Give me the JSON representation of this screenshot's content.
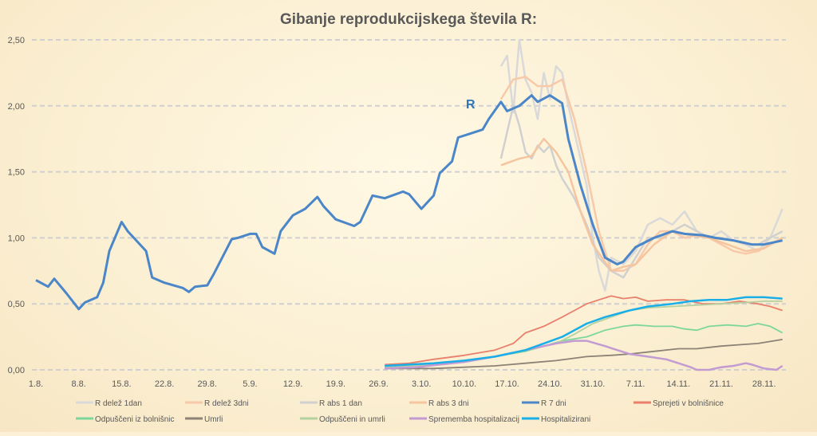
{
  "chart_data": {
    "type": "line",
    "title": "Gibanje reprodukcijskega števila R:",
    "annotation": "R",
    "xlabel": "",
    "ylabel": "",
    "ylim": [
      0,
      2.5
    ],
    "yticks": [
      "0,00",
      "0,50",
      "1,00",
      "1,50",
      "2,00",
      "2,50"
    ],
    "ytick_values": [
      0,
      0.5,
      1,
      1.5,
      2,
      2.5
    ],
    "xticks": [
      "1.8.",
      "8.8.",
      "15.8.",
      "22.8.",
      "29.8.",
      "5.9.",
      "12.9.",
      "19.9.",
      "26.9.",
      "3.10.",
      "10.10.",
      "17.10.",
      "24.10.",
      "31.10.",
      "7.11.",
      "14.11.",
      "21.11.",
      "28.11."
    ],
    "xtick_days": [
      0,
      7,
      14,
      21,
      28,
      35,
      42,
      49,
      56,
      63,
      70,
      77,
      84,
      91,
      98,
      105,
      112,
      119
    ],
    "xlim": [
      0,
      123
    ],
    "grid": "horizontal-dashed",
    "legend_position": "bottom",
    "series": [
      {
        "name": "R delež 1dan",
        "color": "#d9d9d9",
        "width": 2.5,
        "x": [
          76,
          77,
          78,
          79,
          80,
          81,
          82,
          83,
          84,
          85,
          86,
          87,
          88,
          89,
          90,
          91,
          92,
          93,
          94,
          96,
          98,
          100,
          102,
          104,
          106,
          108,
          110,
          112,
          114,
          116,
          118,
          120,
          122
        ],
        "values": [
          2.3,
          2.38,
          1.95,
          2.5,
          2.2,
          2.1,
          1.9,
          2.25,
          2.05,
          2.3,
          2.25,
          2.0,
          1.8,
          1.6,
          1.4,
          1.0,
          0.75,
          0.6,
          0.85,
          0.8,
          0.9,
          1.1,
          1.15,
          1.1,
          1.2,
          1.05,
          1.0,
          1.05,
          0.98,
          0.95,
          0.9,
          1.0,
          1.22
        ]
      },
      {
        "name": "R delež 3dni",
        "color": "#f8c9a8",
        "width": 2.5,
        "x": [
          76,
          78,
          80,
          82,
          84,
          86,
          88,
          90,
          92,
          94,
          96,
          98,
          100,
          102,
          104,
          106,
          108,
          110,
          112,
          114,
          116,
          118,
          120,
          122
        ],
        "values": [
          2.05,
          2.2,
          2.22,
          2.15,
          2.15,
          2.2,
          1.9,
          1.5,
          1.05,
          0.75,
          0.75,
          0.8,
          0.95,
          1.05,
          1.05,
          1.0,
          1.02,
          1.0,
          0.95,
          0.9,
          0.88,
          0.9,
          0.95,
          1.0
        ]
      },
      {
        "name": "R abs 1 dan",
        "color": "#d0d0d0",
        "width": 2.5,
        "x": [
          76,
          77,
          78,
          79,
          80,
          81,
          82,
          83,
          84,
          85,
          86,
          88,
          90,
          92,
          93,
          94,
          96,
          98,
          100,
          102,
          104,
          106,
          108,
          110,
          112,
          114,
          116,
          118,
          120,
          122
        ],
        "values": [
          1.6,
          1.8,
          2.0,
          1.85,
          1.65,
          1.6,
          1.7,
          1.65,
          1.7,
          1.55,
          1.45,
          1.3,
          1.1,
          0.85,
          0.8,
          0.75,
          0.7,
          0.85,
          1.0,
          1.0,
          1.05,
          1.1,
          1.05,
          1.0,
          1.0,
          0.98,
          0.95,
          0.95,
          1.0,
          1.05
        ]
      },
      {
        "name": "R abs 3 dni",
        "color": "#f5c5a0",
        "width": 2.5,
        "x": [
          76,
          79,
          81,
          83,
          85,
          87,
          89,
          91,
          94,
          96,
          98,
          101,
          104,
          107,
          110,
          113,
          116,
          119,
          122
        ],
        "values": [
          1.55,
          1.6,
          1.62,
          1.75,
          1.65,
          1.5,
          1.2,
          0.95,
          0.75,
          0.78,
          0.8,
          0.95,
          1.05,
          1.02,
          1.0,
          0.95,
          0.9,
          0.92,
          1.0
        ]
      },
      {
        "name": "R 7 dni",
        "color": "#4a86c8",
        "width": 3,
        "x": [
          0,
          2,
          3,
          5,
          7,
          8,
          10,
          11,
          12,
          14,
          15,
          18,
          19,
          21,
          24,
          25,
          26,
          28,
          29,
          32,
          33,
          35,
          36,
          37,
          39,
          40,
          42,
          44,
          46,
          47,
          49,
          52,
          53,
          55,
          57,
          60,
          61,
          63,
          65,
          66,
          68,
          69,
          71,
          73,
          74,
          76,
          77,
          79,
          81,
          82,
          84,
          86,
          87,
          89,
          91,
          93,
          95,
          96,
          98,
          101,
          104,
          106,
          109,
          111,
          114,
          117,
          119,
          122
        ],
        "values": [
          0.68,
          0.63,
          0.69,
          0.58,
          0.46,
          0.51,
          0.55,
          0.66,
          0.9,
          1.12,
          1.05,
          0.9,
          0.7,
          0.66,
          0.62,
          0.59,
          0.63,
          0.64,
          0.72,
          0.99,
          1.0,
          1.03,
          1.03,
          0.93,
          0.88,
          1.05,
          1.17,
          1.22,
          1.31,
          1.24,
          1.14,
          1.09,
          1.12,
          1.32,
          1.3,
          1.35,
          1.33,
          1.22,
          1.32,
          1.49,
          1.58,
          1.76,
          1.79,
          1.82,
          1.9,
          2.03,
          1.96,
          2.0,
          2.08,
          2.03,
          2.08,
          2.02,
          1.75,
          1.4,
          1.1,
          0.85,
          0.8,
          0.82,
          0.93,
          1.0,
          1.05,
          1.03,
          1.02,
          1.0,
          0.98,
          0.95,
          0.95,
          0.98
        ]
      },
      {
        "name": "Sprejeti v bolnišnice",
        "color": "#e8806c",
        "width": 1.8,
        "x": [
          57,
          61,
          65,
          70,
          75,
          78,
          80,
          83,
          86,
          88,
          90,
          92,
          94,
          96,
          98,
          100,
          103,
          106,
          109,
          112,
          115,
          118,
          120,
          122
        ],
        "values": [
          0.04,
          0.05,
          0.08,
          0.11,
          0.15,
          0.2,
          0.28,
          0.33,
          0.4,
          0.45,
          0.5,
          0.53,
          0.56,
          0.54,
          0.55,
          0.52,
          0.53,
          0.53,
          0.5,
          0.5,
          0.52,
          0.5,
          0.48,
          0.45
        ]
      },
      {
        "name": "Odpuščeni iz bolnišnic",
        "color": "#7dd69a",
        "width": 1.8,
        "x": [
          57,
          61,
          65,
          70,
          75,
          80,
          83,
          86,
          90,
          93,
          96,
          98,
          101,
          104,
          106,
          108,
          110,
          113,
          116,
          118,
          120,
          122
        ],
        "values": [
          0.02,
          0.03,
          0.05,
          0.07,
          0.1,
          0.14,
          0.18,
          0.22,
          0.25,
          0.3,
          0.33,
          0.34,
          0.33,
          0.33,
          0.31,
          0.3,
          0.33,
          0.34,
          0.33,
          0.35,
          0.33,
          0.28
        ]
      },
      {
        "name": "Umrli",
        "color": "#8c8275",
        "width": 1.8,
        "x": [
          57,
          65,
          70,
          75,
          80,
          85,
          90,
          94,
          97,
          101,
          105,
          108,
          112,
          115,
          118,
          122
        ],
        "values": [
          0.01,
          0.01,
          0.02,
          0.03,
          0.05,
          0.07,
          0.1,
          0.11,
          0.12,
          0.14,
          0.16,
          0.16,
          0.18,
          0.19,
          0.2,
          0.23
        ]
      },
      {
        "name": "Odpuščeni in umrli",
        "color": "#b5d1a0",
        "width": 1.8,
        "x": [
          57,
          65,
          70,
          75,
          80,
          85,
          88,
          91,
          94,
          97,
          100,
          104,
          108,
          112,
          116,
          119,
          122
        ],
        "values": [
          0.02,
          0.04,
          0.07,
          0.1,
          0.15,
          0.2,
          0.27,
          0.35,
          0.4,
          0.45,
          0.47,
          0.48,
          0.49,
          0.5,
          0.51,
          0.52,
          0.52
        ]
      },
      {
        "name": "Sprememba hospitalizacij",
        "color": "#c39bd3",
        "width": 2.5,
        "x": [
          57,
          62,
          66,
          70,
          75,
          80,
          85,
          88,
          90,
          93,
          95,
          97,
          100,
          103,
          105,
          107,
          108,
          110,
          112,
          114,
          116,
          117,
          119,
          121,
          122
        ],
        "values": [
          0.01,
          0.02,
          0.04,
          0.06,
          0.1,
          0.15,
          0.2,
          0.22,
          0.22,
          0.18,
          0.15,
          0.12,
          0.1,
          0.08,
          0.05,
          0.02,
          0.0,
          0.0,
          0.02,
          0.03,
          0.05,
          0.04,
          0.01,
          0.0,
          0.03
        ]
      },
      {
        "name": "Hospitalizirani",
        "color": "#1aaee8",
        "width": 2.5,
        "x": [
          57,
          61,
          65,
          70,
          75,
          80,
          83,
          86,
          90,
          93,
          97,
          100,
          104,
          107,
          110,
          113,
          116,
          119,
          122
        ],
        "values": [
          0.03,
          0.04,
          0.05,
          0.07,
          0.1,
          0.15,
          0.2,
          0.25,
          0.35,
          0.4,
          0.45,
          0.48,
          0.5,
          0.52,
          0.53,
          0.53,
          0.55,
          0.55,
          0.54
        ]
      }
    ]
  }
}
